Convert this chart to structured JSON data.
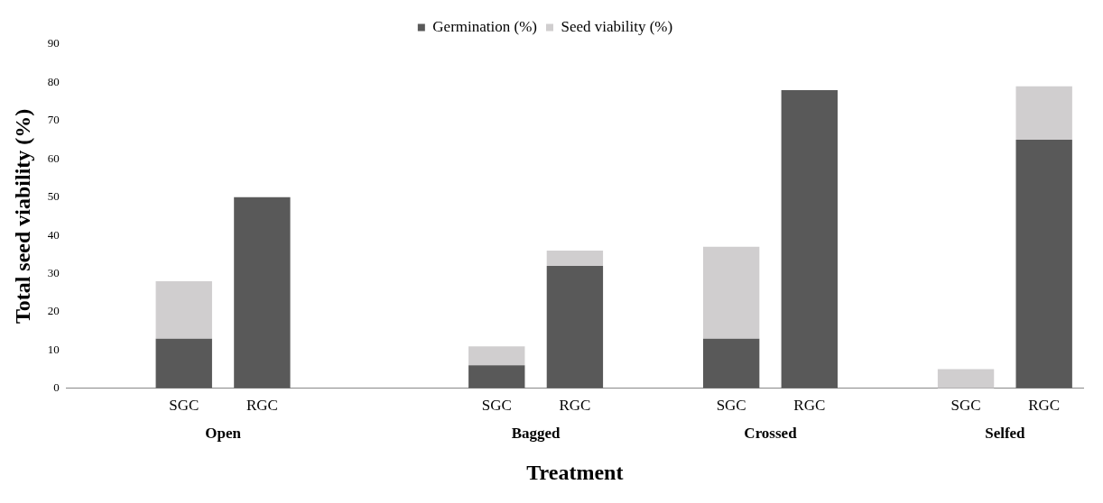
{
  "chart_data": {
    "type": "bar",
    "stacked": true,
    "xlabel": "Treatment",
    "ylabel": "Total seed viability (%)",
    "categories": [
      null,
      "SGC",
      "RGC",
      null,
      null,
      "SGC",
      "RGC",
      null,
      "SGC",
      "RGC",
      null,
      "SGC",
      "RGC"
    ],
    "series": [
      {
        "name": "Germination (%)",
        "color": "#595959",
        "values": [
          null,
          13,
          50,
          null,
          null,
          6,
          32,
          null,
          13,
          78,
          null,
          0,
          65
        ]
      },
      {
        "name": "Seed viability (%)",
        "color": "#d0cecf",
        "values": [
          null,
          15,
          0,
          null,
          null,
          5,
          4,
          null,
          24,
          0,
          null,
          5,
          14
        ]
      }
    ],
    "annotations": [
      "Open",
      "Bagged",
      "Crossed",
      "Selfed"
    ],
    "ylim": [
      0,
      90
    ],
    "yticks": [
      0,
      10,
      20,
      30,
      40,
      50,
      60,
      70,
      80,
      90
    ],
    "grid": false,
    "legend": "top"
  }
}
